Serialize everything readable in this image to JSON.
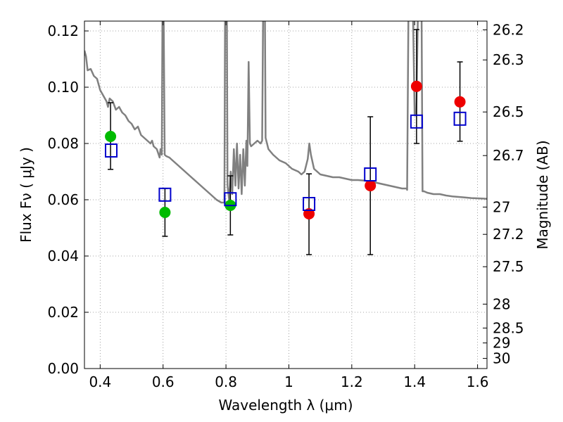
{
  "chart_data": {
    "type": "scatter",
    "xlabel": "Wavelength  λ (μm)",
    "ylabel": "Flux  Fν  ( μJy )",
    "ylabel_right": "Magnitude (AB)",
    "xlim": [
      0.35,
      1.63
    ],
    "ylim": [
      0.0,
      0.1235
    ],
    "grid": true,
    "x_ticks": [
      0.4,
      0.6,
      0.8,
      1.0,
      1.2,
      1.4,
      1.6
    ],
    "x_tick_labels": [
      "0.4",
      "0.6",
      "0.8",
      "1",
      "1.2",
      "1.4",
      "1.6"
    ],
    "y_ticks": [
      0.0,
      0.02,
      0.04,
      0.06,
      0.08,
      0.1,
      0.12
    ],
    "y_tick_labels": [
      "0.00",
      "0.02",
      "0.04",
      "0.06",
      "0.08",
      "0.10",
      "0.12"
    ],
    "right_axis": {
      "labels": [
        "26.2",
        "26.3",
        "26.5",
        "26.7",
        "27",
        "27.2",
        "27.5",
        "28",
        "28.5",
        "29",
        "30"
      ],
      "flux_positions": [
        0.1204,
        0.1097,
        0.0912,
        0.0757,
        0.0574,
        0.0477,
        0.0362,
        0.0229,
        0.0144,
        0.0091,
        0.0036
      ]
    },
    "series": [
      {
        "marker": "circle",
        "color": "#00bb00",
        "points": [
          {
            "x": 0.433,
            "y": 0.0825,
            "yerr_low": 0.0708,
            "yerr_high": 0.0945
          },
          {
            "x": 0.606,
            "y": 0.0555,
            "yerr_low": 0.047,
            "yerr_high": 0.064
          },
          {
            "x": 0.814,
            "y": 0.058,
            "yerr_low": 0.0475,
            "yerr_high": 0.0685
          }
        ]
      },
      {
        "marker": "circle",
        "color": "#ee0000",
        "points": [
          {
            "x": 1.064,
            "y": 0.055,
            "yerr_low": 0.0405,
            "yerr_high": 0.0692
          },
          {
            "x": 1.259,
            "y": 0.065,
            "yerr_low": 0.0405,
            "yerr_high": 0.0895
          },
          {
            "x": 1.406,
            "y": 0.1003,
            "yerr_low": 0.08,
            "yerr_high": 0.1205
          },
          {
            "x": 1.544,
            "y": 0.0948,
            "yerr_low": 0.0808,
            "yerr_high": 0.109
          }
        ]
      },
      {
        "marker": "square-open",
        "color": "#0000cc",
        "points": [
          {
            "x": 0.435,
            "y": 0.0775
          },
          {
            "x": 0.606,
            "y": 0.0618
          },
          {
            "x": 0.814,
            "y": 0.0602
          },
          {
            "x": 1.064,
            "y": 0.0585
          },
          {
            "x": 1.259,
            "y": 0.069
          },
          {
            "x": 1.406,
            "y": 0.0878
          },
          {
            "x": 1.544,
            "y": 0.0888
          }
        ]
      }
    ],
    "spectrum": {
      "color": "#808080",
      "points": [
        [
          0.35,
          0.113
        ],
        [
          0.355,
          0.111
        ],
        [
          0.36,
          0.106
        ],
        [
          0.37,
          0.1065
        ],
        [
          0.38,
          0.104
        ],
        [
          0.39,
          0.103
        ],
        [
          0.4,
          0.099
        ],
        [
          0.41,
          0.097
        ],
        [
          0.42,
          0.095
        ],
        [
          0.425,
          0.093
        ],
        [
          0.43,
          0.096
        ],
        [
          0.44,
          0.095
        ],
        [
          0.45,
          0.092
        ],
        [
          0.46,
          0.093
        ],
        [
          0.47,
          0.091
        ],
        [
          0.48,
          0.09
        ],
        [
          0.49,
          0.088
        ],
        [
          0.5,
          0.087
        ],
        [
          0.51,
          0.085
        ],
        [
          0.52,
          0.086
        ],
        [
          0.53,
          0.083
        ],
        [
          0.54,
          0.082
        ],
        [
          0.55,
          0.081
        ],
        [
          0.56,
          0.08
        ],
        [
          0.565,
          0.081
        ],
        [
          0.57,
          0.079
        ],
        [
          0.58,
          0.078
        ],
        [
          0.586,
          0.076
        ],
        [
          0.589,
          0.075
        ],
        [
          0.592,
          0.078
        ],
        [
          0.596,
          0.076
        ],
        [
          0.598,
          0.124
        ],
        [
          0.602,
          0.124
        ],
        [
          0.605,
          0.076
        ],
        [
          0.61,
          0.0755
        ],
        [
          0.62,
          0.075
        ],
        [
          0.63,
          0.074
        ],
        [
          0.65,
          0.072
        ],
        [
          0.67,
          0.07
        ],
        [
          0.69,
          0.068
        ],
        [
          0.71,
          0.066
        ],
        [
          0.73,
          0.064
        ],
        [
          0.75,
          0.062
        ],
        [
          0.77,
          0.06
        ],
        [
          0.785,
          0.059
        ],
        [
          0.795,
          0.059
        ],
        [
          0.797,
          0.124
        ],
        [
          0.803,
          0.124
        ],
        [
          0.805,
          0.065
        ],
        [
          0.81,
          0.06
        ],
        [
          0.815,
          0.07
        ],
        [
          0.82,
          0.062
        ],
        [
          0.825,
          0.078
        ],
        [
          0.83,
          0.065
        ],
        [
          0.835,
          0.08
        ],
        [
          0.84,
          0.064
        ],
        [
          0.845,
          0.076
        ],
        [
          0.85,
          0.062
        ],
        [
          0.855,
          0.078
        ],
        [
          0.86,
          0.065
        ],
        [
          0.865,
          0.081
        ],
        [
          0.868,
          0.072
        ],
        [
          0.872,
          0.109
        ],
        [
          0.876,
          0.08
        ],
        [
          0.88,
          0.079
        ],
        [
          0.89,
          0.08
        ],
        [
          0.9,
          0.081
        ],
        [
          0.91,
          0.08
        ],
        [
          0.915,
          0.081
        ],
        [
          0.918,
          0.124
        ],
        [
          0.924,
          0.124
        ],
        [
          0.926,
          0.082
        ],
        [
          0.935,
          0.078
        ],
        [
          0.95,
          0.076
        ],
        [
          0.97,
          0.074
        ],
        [
          0.99,
          0.073
        ],
        [
          1.01,
          0.071
        ],
        [
          1.03,
          0.07
        ],
        [
          1.04,
          0.069
        ],
        [
          1.05,
          0.07
        ],
        [
          1.06,
          0.0745
        ],
        [
          1.065,
          0.08
        ],
        [
          1.07,
          0.076
        ],
        [
          1.08,
          0.071
        ],
        [
          1.1,
          0.069
        ],
        [
          1.12,
          0.0685
        ],
        [
          1.14,
          0.068
        ],
        [
          1.16,
          0.068
        ],
        [
          1.18,
          0.0675
        ],
        [
          1.2,
          0.067
        ],
        [
          1.22,
          0.067
        ],
        [
          1.24,
          0.0668
        ],
        [
          1.26,
          0.0665
        ],
        [
          1.28,
          0.066
        ],
        [
          1.3,
          0.0655
        ],
        [
          1.32,
          0.065
        ],
        [
          1.34,
          0.0645
        ],
        [
          1.36,
          0.064
        ],
        [
          1.375,
          0.064
        ],
        [
          1.376,
          0.0635
        ],
        [
          1.38,
          0.124
        ],
        [
          1.395,
          0.124
        ],
        [
          1.4,
          0.09
        ],
        [
          1.405,
          0.09
        ],
        [
          1.41,
          0.124
        ],
        [
          1.422,
          0.124
        ],
        [
          1.425,
          0.063
        ],
        [
          1.43,
          0.063
        ],
        [
          1.44,
          0.0625
        ],
        [
          1.46,
          0.062
        ],
        [
          1.48,
          0.062
        ],
        [
          1.5,
          0.0615
        ],
        [
          1.52,
          0.0612
        ],
        [
          1.54,
          0.061
        ],
        [
          1.56,
          0.0608
        ],
        [
          1.58,
          0.0606
        ],
        [
          1.6,
          0.0605
        ],
        [
          1.62,
          0.0604
        ],
        [
          1.63,
          0.0603
        ]
      ]
    }
  }
}
